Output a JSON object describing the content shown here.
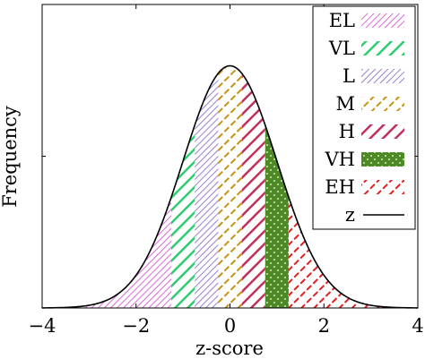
{
  "chart_data": {
    "type": "area",
    "xlabel": "z-score",
    "ylabel": "Frequency",
    "xlim": [
      -4,
      4
    ],
    "ylim": [
      0,
      0.5
    ],
    "x_ticks": [
      {
        "value": -4,
        "label": "−4"
      },
      {
        "value": -2,
        "label": "−2"
      },
      {
        "value": 0,
        "label": "0"
      },
      {
        "value": 2,
        "label": "2"
      },
      {
        "value": 4,
        "label": "4"
      }
    ],
    "y_ticks": [
      0.25
    ],
    "legend_position": "top-right",
    "curve": {
      "name": "z",
      "mean": 0,
      "sd": 1,
      "color": "#000000"
    },
    "bands": [
      {
        "name": "EL",
        "from": -4,
        "to": -1.25,
        "color": "#d86ad8",
        "pattern": "fine-diagonal"
      },
      {
        "name": "VL",
        "from": -1.25,
        "to": -0.75,
        "color": "#2ecc71",
        "pattern": "thick-diagonal"
      },
      {
        "name": "L",
        "from": -0.75,
        "to": -0.25,
        "color": "#9b7fd0",
        "pattern": "fine-diagonal"
      },
      {
        "name": "M",
        "from": -0.25,
        "to": 0.25,
        "color": "#c69314",
        "pattern": "dashed-diagonal"
      },
      {
        "name": "H",
        "from": 0.25,
        "to": 0.75,
        "color": "#c2305a",
        "pattern": "thick-diagonal"
      },
      {
        "name": "VH",
        "from": 0.75,
        "to": 1.25,
        "color": "#4e8a24",
        "pattern": "dotted-bricks"
      },
      {
        "name": "EH",
        "from": 1.25,
        "to": 4,
        "color": "#e02020",
        "pattern": "dashed-diagonal"
      }
    ]
  }
}
